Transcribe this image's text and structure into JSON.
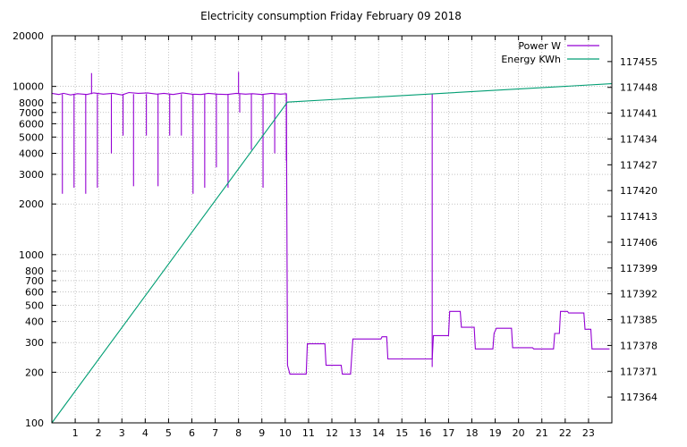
{
  "chart_data": {
    "type": "line",
    "title": "Electricity consumption Friday February 09 2018",
    "xlabel": "",
    "ylabel": "",
    "x_ticks": [
      "1",
      "2",
      "3",
      "4",
      "5",
      "6",
      "7",
      "8",
      "9",
      "10",
      "11",
      "12",
      "13",
      "14",
      "15",
      "16",
      "17",
      "18",
      "19",
      "20",
      "21",
      "22",
      "23"
    ],
    "xlim": [
      0,
      24
    ],
    "y_scale": "log",
    "ylim": [
      100,
      20000
    ],
    "y_ticks": [
      "100",
      "200",
      "300",
      "400",
      "500",
      "600",
      "700",
      "800",
      "1000",
      "2000",
      "3000",
      "4000",
      "5000",
      "6000",
      "7000",
      "8000",
      "10000",
      "20000"
    ],
    "y2_scale": "linear",
    "y2lim": [
      117357,
      117462
    ],
    "y2_ticks": [
      "117364",
      "117371",
      "117378",
      "117385",
      "117392",
      "117399",
      "117406",
      "117413",
      "117420",
      "117427",
      "117434",
      "117441",
      "117448",
      "117455"
    ],
    "grid": true,
    "legend_position": "top-right",
    "series": [
      {
        "name": "Power W",
        "axis": "left",
        "color": "#9400d3",
        "points": [
          [
            0,
            9100
          ],
          [
            0.3,
            8950
          ],
          [
            0.5,
            9100
          ],
          [
            0.8,
            8900
          ],
          [
            1.1,
            9050
          ],
          [
            1.5,
            8950
          ],
          [
            1.8,
            9150
          ],
          [
            2.2,
            9000
          ],
          [
            2.6,
            9100
          ],
          [
            3.0,
            8900
          ],
          [
            3.3,
            9200
          ],
          [
            3.7,
            9100
          ],
          [
            4.1,
            9150
          ],
          [
            4.5,
            9000
          ],
          [
            4.8,
            9100
          ],
          [
            5.2,
            8950
          ],
          [
            5.6,
            9150
          ],
          [
            6.0,
            9000
          ],
          [
            6.4,
            8950
          ],
          [
            6.7,
            9100
          ],
          [
            7.1,
            9000
          ],
          [
            7.5,
            8950
          ],
          [
            7.9,
            9100
          ],
          [
            8.3,
            9000
          ],
          [
            8.6,
            9050
          ],
          [
            9.0,
            8950
          ],
          [
            9.4,
            9100
          ],
          [
            9.8,
            9000
          ],
          [
            10.05,
            9050
          ],
          [
            10.1,
            220
          ],
          [
            10.2,
            195
          ],
          [
            10.9,
            195
          ],
          [
            10.95,
            295
          ],
          [
            11.7,
            295
          ],
          [
            11.75,
            220
          ],
          [
            12.4,
            220
          ],
          [
            12.45,
            195
          ],
          [
            12.8,
            195
          ],
          [
            12.85,
            250
          ],
          [
            12.9,
            315
          ],
          [
            14.1,
            315
          ],
          [
            14.15,
            325
          ],
          [
            14.35,
            325
          ],
          [
            14.4,
            240
          ],
          [
            16.3,
            240
          ],
          [
            16.35,
            330
          ],
          [
            17.0,
            330
          ],
          [
            17.05,
            460
          ],
          [
            17.5,
            460
          ],
          [
            17.55,
            370
          ],
          [
            18.1,
            370
          ],
          [
            18.15,
            275
          ],
          [
            18.9,
            275
          ],
          [
            18.95,
            340
          ],
          [
            19.05,
            365
          ],
          [
            19.7,
            365
          ],
          [
            19.75,
            280
          ],
          [
            20.6,
            280
          ],
          [
            20.65,
            275
          ],
          [
            21.5,
            275
          ],
          [
            21.55,
            340
          ],
          [
            21.75,
            340
          ],
          [
            21.8,
            460
          ],
          [
            22.1,
            460
          ],
          [
            22.15,
            450
          ],
          [
            22.8,
            450
          ],
          [
            22.85,
            360
          ],
          [
            23.1,
            360
          ],
          [
            23.15,
            275
          ],
          [
            23.9,
            275
          ]
        ],
        "spikes_down": [
          [
            0.45,
            2300
          ],
          [
            0.95,
            2500
          ],
          [
            1.45,
            2300
          ],
          [
            1.95,
            2500
          ],
          [
            2.55,
            4000
          ],
          [
            3.05,
            5100
          ],
          [
            3.5,
            2550
          ],
          [
            4.05,
            5100
          ],
          [
            4.55,
            2550
          ],
          [
            5.05,
            5100
          ],
          [
            5.55,
            5100
          ],
          [
            6.05,
            2300
          ],
          [
            6.55,
            2500
          ],
          [
            7.05,
            3300
          ],
          [
            7.55,
            2500
          ],
          [
            8.05,
            7000
          ],
          [
            8.55,
            4200
          ],
          [
            9.05,
            2500
          ],
          [
            9.55,
            4000
          ],
          [
            10.05,
            3600
          ],
          [
            16.3,
            215
          ]
        ],
        "spikes_up": [
          [
            1.7,
            12000
          ],
          [
            8.0,
            12200
          ]
        ]
      },
      {
        "name": "Energy KWh",
        "axis": "right",
        "color": "#009e73",
        "points": [
          [
            0,
            117357
          ],
          [
            10.1,
            117444
          ],
          [
            24,
            117449
          ]
        ]
      }
    ]
  }
}
